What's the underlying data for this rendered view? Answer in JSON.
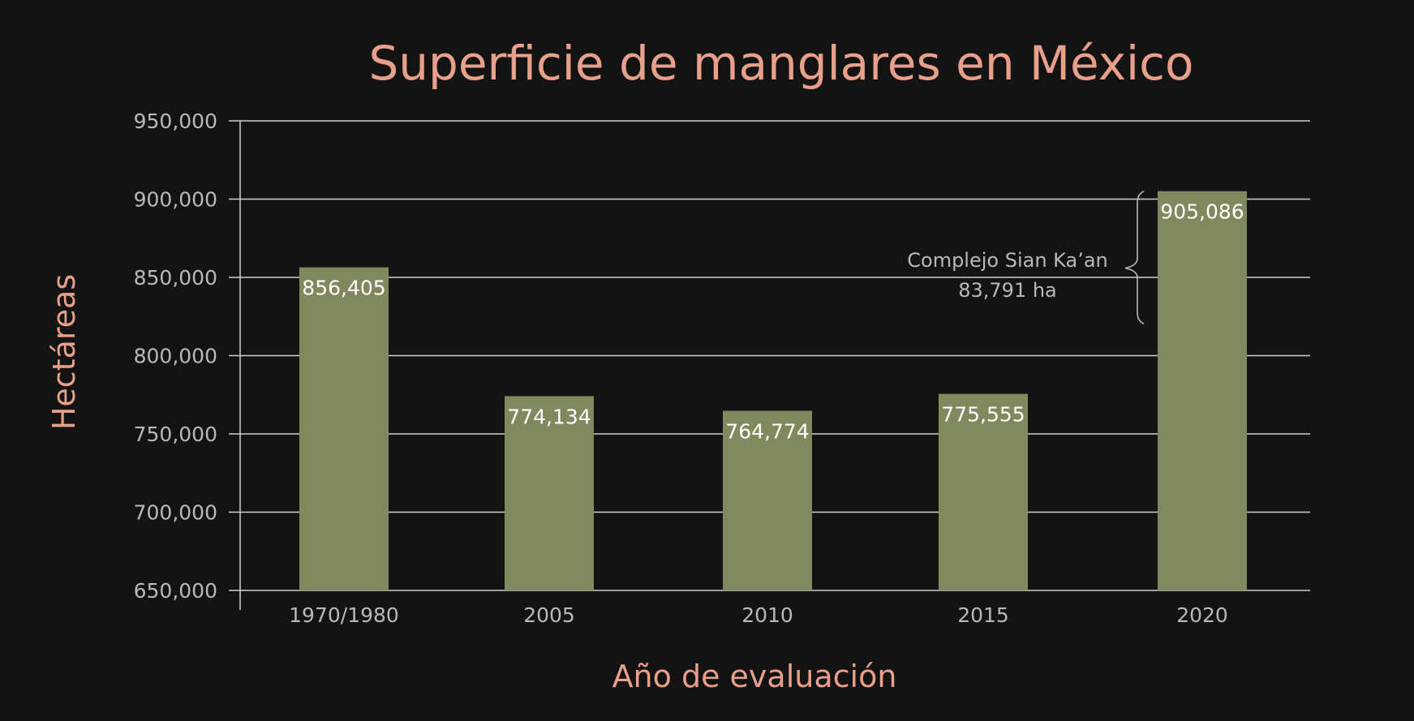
{
  "chart_data": {
    "type": "bar",
    "title": "Superficie de manglares en México",
    "xlabel": "Año de evaluación",
    "ylabel": "Hectáreas",
    "categories": [
      "1970/1980",
      "2005",
      "2010",
      "2015",
      "2020"
    ],
    "values": [
      856405,
      774134,
      764774,
      775555,
      905086
    ],
    "value_labels": [
      "856,405",
      "774,134",
      "764,774",
      "775,555",
      "905,086"
    ],
    "ylim": [
      650000,
      950000
    ],
    "yticks": [
      650000,
      700000,
      750000,
      800000,
      850000,
      900000,
      950000
    ],
    "ytick_labels": [
      "650,000",
      "700,000",
      "750,000",
      "800,000",
      "850,000",
      "900,000",
      "950,000"
    ],
    "grid": true,
    "annotation": {
      "category": "2020",
      "lines": [
        "Complejo Sian Ka’an",
        "83,791 ha"
      ],
      "range": [
        821295,
        905086
      ]
    }
  },
  "colors": {
    "background": "#131313",
    "bar": "#7f895d",
    "title": "#e8a08a",
    "tick_text": "#b9b9b9",
    "bar_label": "#ffffff"
  }
}
